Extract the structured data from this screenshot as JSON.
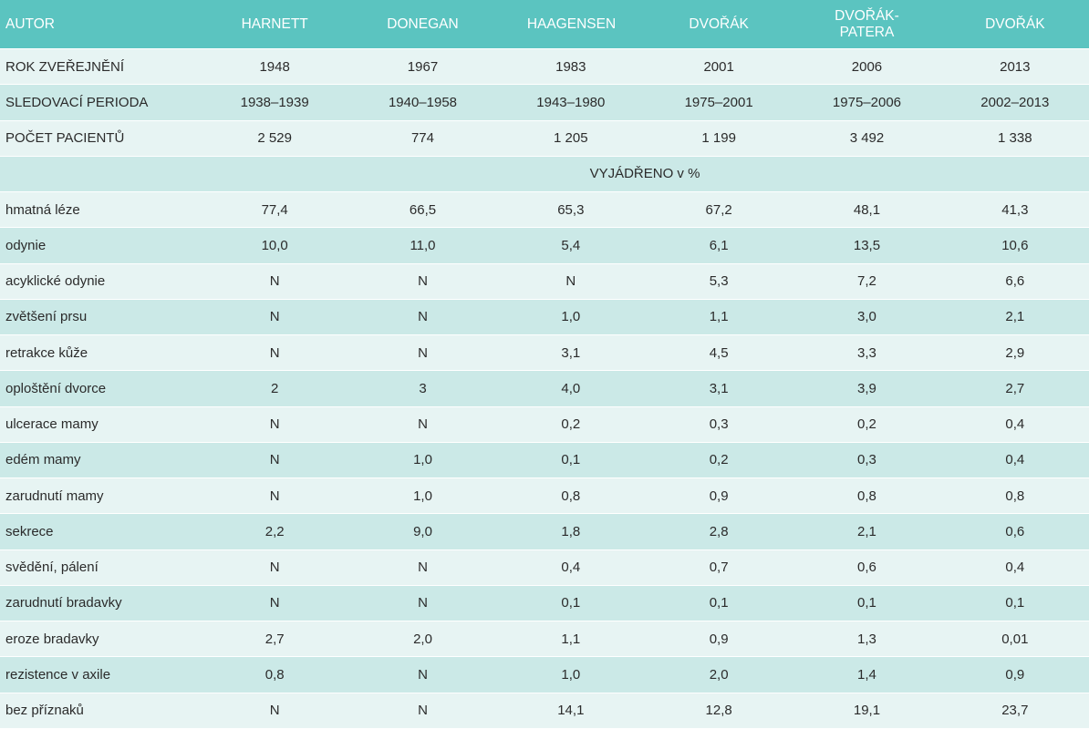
{
  "table": {
    "header": [
      "AUTOR",
      "HARNETT",
      "DONEGAN",
      "HAAGENSEN",
      "DVOŘÁK",
      "DVOŘÁK-PATERA",
      "DVOŘÁK"
    ],
    "info_rows": [
      [
        "ROK ZVEŘEJNĚNÍ",
        "1948",
        "1967",
        "1983",
        "2001",
        "2006",
        "2013"
      ],
      [
        "SLEDOVACÍ PERIODA",
        "1938–1939",
        "1940–1958",
        "1943–1980",
        "1975–2001",
        "1975–2006",
        "2002–2013"
      ],
      [
        "POČET PACIENTŮ",
        "2 529",
        "774",
        "1 205",
        "1 199",
        "3 492",
        "1 338"
      ]
    ],
    "section_label": "VYJÁDŘENO v %",
    "rows": [
      [
        "hmatná léze",
        "77,4",
        "66,5",
        "65,3",
        "67,2",
        "48,1",
        "41,3"
      ],
      [
        "odynie",
        "10,0",
        "11,0",
        "5,4",
        "6,1",
        "13,5",
        "10,6"
      ],
      [
        "acyklické odynie",
        "N",
        "N",
        "N",
        "5,3",
        "7,2",
        "6,6"
      ],
      [
        "zvětšení prsu",
        "N",
        "N",
        "1,0",
        "1,1",
        "3,0",
        "2,1"
      ],
      [
        "retrakce kůže",
        "N",
        "N",
        "3,1",
        "4,5",
        "3,3",
        "2,9"
      ],
      [
        "oploštění dvorce",
        "2",
        "3",
        "4,0",
        "3,1",
        "3,9",
        "2,7"
      ],
      [
        "ulcerace mamy",
        "N",
        "N",
        "0,2",
        "0,3",
        "0,2",
        "0,4"
      ],
      [
        "edém mamy",
        "N",
        "1,0",
        "0,1",
        "0,2",
        "0,3",
        "0,4"
      ],
      [
        "zarudnutí mamy",
        "N",
        "1,0",
        "0,8",
        "0,9",
        "0,8",
        "0,8"
      ],
      [
        "sekrece",
        "2,2",
        "9,0",
        "1,8",
        "2,8",
        "2,1",
        "0,6"
      ],
      [
        "svědění, pálení",
        "N",
        "N",
        "0,4",
        "0,7",
        "0,6",
        "0,4"
      ],
      [
        "zarudnutí bradavky",
        "N",
        "N",
        "0,1",
        "0,1",
        "0,1",
        "0,1"
      ],
      [
        "eroze bradavky",
        "2,7",
        "2,0",
        "1,1",
        "0,9",
        "1,3",
        "0,01"
      ],
      [
        "rezistence v axile",
        "0,8",
        "N",
        "1,0",
        "2,0",
        "1,4",
        "0,9"
      ],
      [
        "bez příznaků",
        "N",
        "N",
        "14,1",
        "12,8",
        "19,1",
        "23,7"
      ]
    ]
  }
}
